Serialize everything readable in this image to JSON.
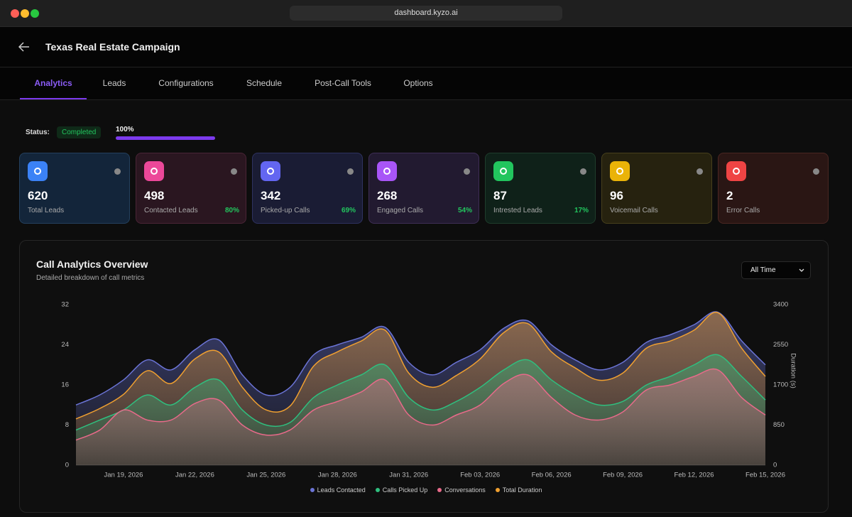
{
  "browser": {
    "url": "dashboard.kyzo.ai"
  },
  "header": {
    "title": "Texas Real Estate Campaign"
  },
  "tabs": [
    "Analytics",
    "Leads",
    "Configurations",
    "Schedule",
    "Post-Call Tools",
    "Options"
  ],
  "status": {
    "label": "Status:",
    "value": "Completed",
    "progress": {
      "value": 100,
      "label": "100%"
    }
  },
  "cards": [
    {
      "value": 620,
      "label": "Total Leads"
    },
    {
      "value": 498,
      "label": "Contacted Leads",
      "percent": "80%"
    },
    {
      "value": 342,
      "label": "Picked-up Calls",
      "percent": "69%"
    },
    {
      "value": 268,
      "label": "Engaged Calls",
      "percent": "54%"
    },
    {
      "value": 87,
      "label": "Intrested Leads",
      "percent": "17%"
    },
    {
      "value": 96,
      "label": "Voicemail Calls"
    },
    {
      "value": 2,
      "label": "Error Calls"
    }
  ],
  "chart_controls": {
    "range": "All Time"
  },
  "chart_data": {
    "type": "area",
    "title": "Call Analytics Overview",
    "subtitle": "Detailed breakdown of call metrics",
    "categories": [
      null,
      null,
      "Jan 19, 2026",
      null,
      null,
      "Jan 22, 2026",
      null,
      null,
      "Jan 25, 2026",
      null,
      null,
      "Jan 28, 2026",
      null,
      null,
      "Jan 31, 2026",
      null,
      null,
      "Feb 03, 2026",
      null,
      null,
      "Feb 06, 2026",
      null,
      null,
      "Feb 09, 2026",
      null,
      null,
      "Feb 12, 2026",
      null,
      null,
      "Feb 15, 2026"
    ],
    "series": [
      {
        "name": "Leads Contacted",
        "color": "#6b74d6",
        "values": [
          12,
          14,
          17,
          21,
          19,
          23,
          25,
          18,
          14,
          15.5,
          22,
          24,
          25.5,
          27.5,
          20.5,
          18,
          20.5,
          23,
          27.3,
          28.8,
          24,
          21,
          19,
          20.5,
          24.5,
          26,
          28,
          30.5,
          24.8,
          20
        ]
      },
      {
        "name": "Calls Picked Up",
        "color": "#2fbf7f",
        "values": [
          7,
          9,
          11,
          14,
          12,
          15.5,
          17,
          11,
          8,
          8.5,
          13.5,
          16,
          18,
          20,
          13.5,
          11,
          12.7,
          15.5,
          19,
          21,
          17,
          14,
          12,
          12.7,
          16,
          17.7,
          20,
          22,
          17.7,
          13
        ]
      },
      {
        "name": "Conversations",
        "color": "#e86a8a",
        "values": [
          5,
          7,
          11,
          9,
          9,
          12.3,
          13,
          8,
          6,
          7,
          11,
          12.7,
          14.6,
          17,
          10,
          8,
          10,
          12,
          16.3,
          18,
          13.5,
          10,
          9,
          10.6,
          15,
          16,
          17.7,
          19,
          13.5,
          10
        ]
      },
      {
        "name": "Total Duration",
        "color": "#f0a030",
        "axis": "y2",
        "values": [
          980,
          1200,
          1500,
          2000,
          1730,
          2250,
          2400,
          1650,
          1170,
          1250,
          2100,
          2400,
          2630,
          2860,
          1950,
          1650,
          1900,
          2250,
          2810,
          3000,
          2400,
          2060,
          1800,
          1950,
          2480,
          2630,
          2860,
          3230,
          2480,
          1880
        ]
      }
    ],
    "ylim": [
      0,
      32
    ],
    "yticks": [
      0,
      8,
      16,
      24,
      32
    ],
    "y2lim": [
      0,
      3400
    ],
    "y2ticks": [
      0,
      850,
      1700,
      2550,
      3400
    ],
    "y2label": "Duration (s)"
  }
}
